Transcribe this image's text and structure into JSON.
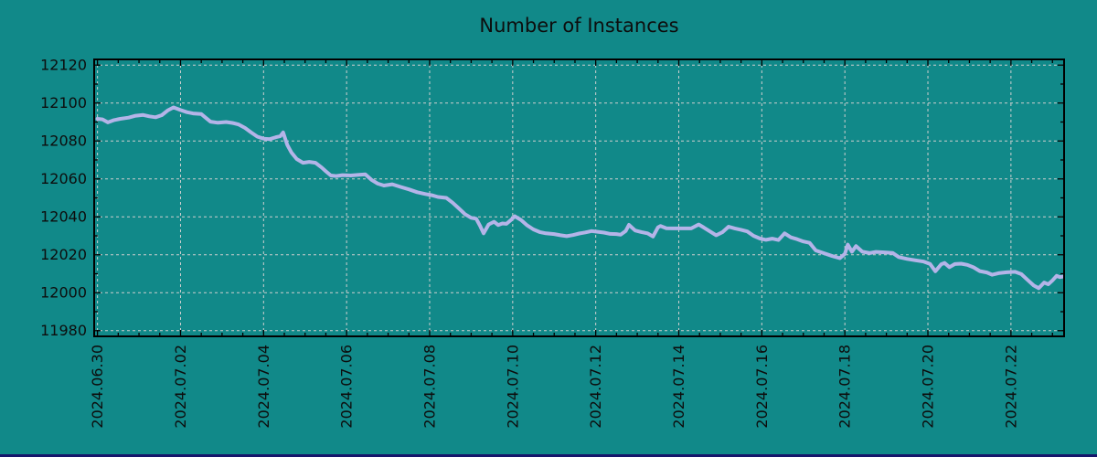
{
  "colors": {
    "background": "#118989",
    "line": "#b4b4e8",
    "grid": "#cfcfcf",
    "axis": "#000000",
    "text": "#0d0d0d",
    "bottom_edge": "#16166b"
  },
  "chart_data": {
    "type": "line",
    "title": "Number of Instances",
    "xlabel": "",
    "ylabel": "",
    "grid": true,
    "legend_position": "none",
    "x_unit": "days since 2024.06.30",
    "xlim_days": [
      -0.08,
      23.28
    ],
    "ylim": [
      11977,
      12123
    ],
    "y_major_ticks": [
      11980,
      12000,
      12020,
      12040,
      12060,
      12080,
      12100,
      12120
    ],
    "y_minor_step": 10,
    "x_major_tick_days": [
      0,
      2,
      4,
      6,
      8,
      10,
      12,
      14,
      16,
      18,
      20,
      22
    ],
    "x_tick_labels": [
      "2024.06.30",
      "2024.07.02",
      "2024.07.04",
      "2024.07.06",
      "2024.07.08",
      "2024.07.10",
      "2024.07.12",
      "2024.07.14",
      "2024.07.16",
      "2024.07.18",
      "2024.07.20",
      "2024.07.22"
    ],
    "x_minor_step_days": 0.5,
    "series": [
      {
        "name": "instances",
        "points": [
          [
            0.0,
            12091.7
          ],
          [
            0.12,
            12091.4
          ],
          [
            0.25,
            12089.8
          ],
          [
            0.4,
            12091.0
          ],
          [
            0.55,
            12091.7
          ],
          [
            0.75,
            12092.3
          ],
          [
            0.9,
            12093.2
          ],
          [
            1.1,
            12093.7
          ],
          [
            1.25,
            12093.0
          ],
          [
            1.4,
            12092.5
          ],
          [
            1.55,
            12093.6
          ],
          [
            1.7,
            12096.2
          ],
          [
            1.83,
            12097.7
          ],
          [
            2.0,
            12096.3
          ],
          [
            2.15,
            12095.2
          ],
          [
            2.3,
            12094.5
          ],
          [
            2.5,
            12094.2
          ],
          [
            2.62,
            12092.0
          ],
          [
            2.72,
            12090.2
          ],
          [
            2.9,
            12089.6
          ],
          [
            3.1,
            12090.0
          ],
          [
            3.25,
            12089.5
          ],
          [
            3.4,
            12088.7
          ],
          [
            3.55,
            12086.9
          ],
          [
            3.7,
            12084.5
          ],
          [
            3.85,
            12082.3
          ],
          [
            4.0,
            12081.2
          ],
          [
            4.15,
            12081.0
          ],
          [
            4.3,
            12082.0
          ],
          [
            4.4,
            12082.5
          ],
          [
            4.47,
            12084.5
          ],
          [
            4.57,
            12078.0
          ],
          [
            4.67,
            12074.0
          ],
          [
            4.8,
            12070.5
          ],
          [
            4.95,
            12068.5
          ],
          [
            5.1,
            12069.0
          ],
          [
            5.25,
            12068.5
          ],
          [
            5.4,
            12066.0
          ],
          [
            5.5,
            12064.0
          ],
          [
            5.62,
            12061.8
          ],
          [
            5.75,
            12061.5
          ],
          [
            5.9,
            12062.0
          ],
          [
            6.1,
            12061.8
          ],
          [
            6.3,
            12062.2
          ],
          [
            6.45,
            12062.4
          ],
          [
            6.6,
            12059.5
          ],
          [
            6.75,
            12057.5
          ],
          [
            6.9,
            12056.5
          ],
          [
            7.1,
            12057.2
          ],
          [
            7.3,
            12055.8
          ],
          [
            7.5,
            12054.5
          ],
          [
            7.7,
            12053.0
          ],
          [
            7.9,
            12052.0
          ],
          [
            8.05,
            12051.4
          ],
          [
            8.2,
            12050.5
          ],
          [
            8.4,
            12050.0
          ],
          [
            8.55,
            12047.5
          ],
          [
            8.7,
            12044.5
          ],
          [
            8.85,
            12041.4
          ],
          [
            9.0,
            12039.5
          ],
          [
            9.12,
            12039.0
          ],
          [
            9.22,
            12035.0
          ],
          [
            9.3,
            12031.3
          ],
          [
            9.42,
            12036.0
          ],
          [
            9.55,
            12037.4
          ],
          [
            9.65,
            12035.7
          ],
          [
            9.75,
            12036.5
          ],
          [
            9.85,
            12036.3
          ],
          [
            9.95,
            12038.2
          ],
          [
            10.05,
            12040.3
          ],
          [
            10.2,
            12038.4
          ],
          [
            10.35,
            12035.5
          ],
          [
            10.5,
            12033.4
          ],
          [
            10.65,
            12032.0
          ],
          [
            10.8,
            12031.3
          ],
          [
            11.0,
            12030.9
          ],
          [
            11.15,
            12030.3
          ],
          [
            11.3,
            12029.8
          ],
          [
            11.45,
            12030.4
          ],
          [
            11.6,
            12031.2
          ],
          [
            11.75,
            12031.8
          ],
          [
            11.9,
            12032.5
          ],
          [
            12.05,
            12032.1
          ],
          [
            12.2,
            12031.7
          ],
          [
            12.35,
            12031.0
          ],
          [
            12.5,
            12030.9
          ],
          [
            12.6,
            12030.6
          ],
          [
            12.72,
            12032.5
          ],
          [
            12.8,
            12035.8
          ],
          [
            12.95,
            12032.8
          ],
          [
            13.1,
            12032.0
          ],
          [
            13.25,
            12031.3
          ],
          [
            13.38,
            12029.6
          ],
          [
            13.5,
            12034.5
          ],
          [
            13.56,
            12035.2
          ],
          [
            13.7,
            12034.0
          ],
          [
            13.85,
            12033.9
          ],
          [
            14.0,
            12033.9
          ],
          [
            14.15,
            12033.9
          ],
          [
            14.3,
            12033.9
          ],
          [
            14.48,
            12036.0
          ],
          [
            14.6,
            12034.4
          ],
          [
            14.75,
            12032.3
          ],
          [
            14.9,
            12030.3
          ],
          [
            15.05,
            12031.9
          ],
          [
            15.2,
            12034.8
          ],
          [
            15.35,
            12033.9
          ],
          [
            15.5,
            12033.2
          ],
          [
            15.65,
            12032.3
          ],
          [
            15.8,
            12030.0
          ],
          [
            15.95,
            12028.6
          ],
          [
            16.1,
            12027.9
          ],
          [
            16.25,
            12028.5
          ],
          [
            16.4,
            12027.8
          ],
          [
            16.55,
            12031.3
          ],
          [
            16.7,
            12029.2
          ],
          [
            16.85,
            12028.2
          ],
          [
            17.0,
            12027.0
          ],
          [
            17.15,
            12026.3
          ],
          [
            17.3,
            12022.3
          ],
          [
            17.5,
            12020.8
          ],
          [
            17.7,
            12019.3
          ],
          [
            17.88,
            12018.2
          ],
          [
            18.0,
            12020.5
          ],
          [
            18.07,
            12025.4
          ],
          [
            18.17,
            12021.6
          ],
          [
            18.27,
            12024.6
          ],
          [
            18.42,
            12021.6
          ],
          [
            18.6,
            12020.9
          ],
          [
            18.75,
            12021.5
          ],
          [
            18.95,
            12021.3
          ],
          [
            19.15,
            12021.0
          ],
          [
            19.3,
            12018.8
          ],
          [
            19.5,
            12017.8
          ],
          [
            19.7,
            12017.1
          ],
          [
            19.9,
            12016.4
          ],
          [
            20.05,
            12015.2
          ],
          [
            20.18,
            12011.3
          ],
          [
            20.32,
            12015.0
          ],
          [
            20.4,
            12015.7
          ],
          [
            20.52,
            12013.5
          ],
          [
            20.65,
            12015.1
          ],
          [
            20.8,
            12015.3
          ],
          [
            20.95,
            12014.7
          ],
          [
            21.1,
            12013.4
          ],
          [
            21.25,
            12011.4
          ],
          [
            21.42,
            12010.7
          ],
          [
            21.55,
            12009.5
          ],
          [
            21.7,
            12010.3
          ],
          [
            21.9,
            12010.8
          ],
          [
            22.1,
            12011.0
          ],
          [
            22.25,
            12009.8
          ],
          [
            22.4,
            12006.8
          ],
          [
            22.55,
            12003.8
          ],
          [
            22.67,
            12002.4
          ],
          [
            22.8,
            12005.4
          ],
          [
            22.9,
            12004.4
          ],
          [
            23.0,
            12006.5
          ],
          [
            23.1,
            12008.9
          ],
          [
            23.18,
            12008.2
          ],
          [
            23.25,
            12008.5
          ]
        ]
      }
    ]
  }
}
